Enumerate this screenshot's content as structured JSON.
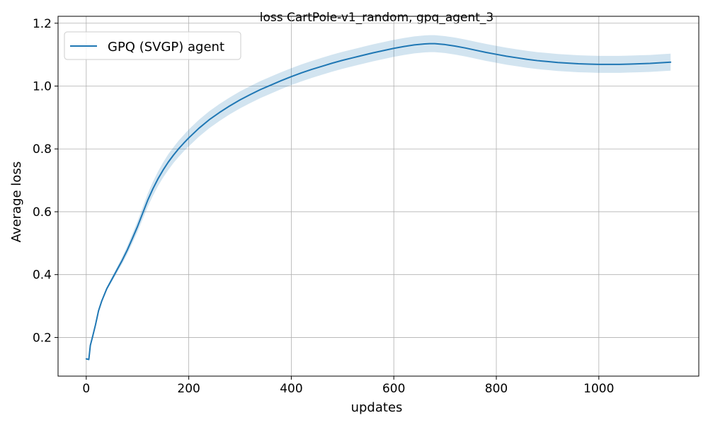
{
  "chart_data": {
    "type": "line",
    "title": "loss CartPole-v1_random, gpq_agent_3",
    "xlabel": "updates",
    "ylabel": "Average loss",
    "xlim": [
      -55,
      1195
    ],
    "ylim": [
      0.077,
      1.222
    ],
    "xticks": [
      0,
      200,
      400,
      600,
      800,
      1000
    ],
    "yticks": [
      0.2,
      0.4,
      0.6,
      0.8,
      1.0,
      1.2
    ],
    "grid": true,
    "legend": "top-left",
    "series": [
      {
        "name": "GPQ (SVGP) agent",
        "color": "#1f77b4",
        "band_color": "#1f77b4",
        "band_opacity": 0.2,
        "x": [
          0,
          5,
          8,
          12,
          18,
          24,
          30,
          35,
          40,
          50,
          60,
          70,
          80,
          90,
          100,
          110,
          120,
          130,
          140,
          150,
          160,
          170,
          180,
          190,
          200,
          220,
          240,
          260,
          280,
          300,
          320,
          340,
          360,
          380,
          400,
          420,
          440,
          460,
          480,
          500,
          520,
          540,
          560,
          580,
          600,
          620,
          640,
          660,
          670,
          680,
          700,
          720,
          740,
          760,
          780,
          800,
          820,
          840,
          860,
          880,
          900,
          920,
          940,
          960,
          980,
          1000,
          1020,
          1040,
          1060,
          1080,
          1100,
          1120,
          1140
        ],
        "y": [
          0.132,
          0.13,
          0.175,
          0.2,
          0.24,
          0.285,
          0.315,
          0.335,
          0.355,
          0.385,
          0.415,
          0.445,
          0.478,
          0.515,
          0.553,
          0.595,
          0.637,
          0.673,
          0.705,
          0.733,
          0.758,
          0.78,
          0.8,
          0.818,
          0.835,
          0.866,
          0.893,
          0.916,
          0.937,
          0.956,
          0.973,
          0.989,
          1.003,
          1.017,
          1.03,
          1.042,
          1.053,
          1.063,
          1.073,
          1.082,
          1.09,
          1.098,
          1.106,
          1.113,
          1.12,
          1.126,
          1.131,
          1.134,
          1.135,
          1.135,
          1.132,
          1.127,
          1.121,
          1.114,
          1.107,
          1.101,
          1.095,
          1.09,
          1.085,
          1.081,
          1.078,
          1.075,
          1.073,
          1.071,
          1.07,
          1.069,
          1.069,
          1.069,
          1.07,
          1.071,
          1.072,
          1.074,
          1.076
        ],
        "y_lower": [
          0.132,
          0.13,
          0.175,
          0.2,
          0.24,
          0.283,
          0.312,
          0.331,
          0.35,
          0.378,
          0.406,
          0.434,
          0.465,
          0.5,
          0.536,
          0.576,
          0.616,
          0.651,
          0.682,
          0.709,
          0.733,
          0.755,
          0.774,
          0.792,
          0.808,
          0.839,
          0.866,
          0.889,
          0.91,
          0.929,
          0.946,
          0.962,
          0.976,
          0.99,
          1.003,
          1.015,
          1.026,
          1.036,
          1.046,
          1.055,
          1.063,
          1.071,
          1.079,
          1.086,
          1.093,
          1.099,
          1.104,
          1.107,
          1.108,
          1.108,
          1.105,
          1.1,
          1.094,
          1.087,
          1.08,
          1.074,
          1.068,
          1.063,
          1.058,
          1.054,
          1.051,
          1.048,
          1.046,
          1.044,
          1.043,
          1.042,
          1.042,
          1.042,
          1.043,
          1.044,
          1.045,
          1.047,
          1.049
        ],
        "y_upper": [
          0.132,
          0.13,
          0.175,
          0.2,
          0.24,
          0.287,
          0.318,
          0.339,
          0.36,
          0.392,
          0.424,
          0.456,
          0.491,
          0.53,
          0.57,
          0.614,
          0.658,
          0.695,
          0.728,
          0.757,
          0.783,
          0.805,
          0.826,
          0.844,
          0.862,
          0.893,
          0.92,
          0.943,
          0.964,
          0.983,
          1.0,
          1.016,
          1.03,
          1.044,
          1.057,
          1.069,
          1.08,
          1.09,
          1.1,
          1.109,
          1.117,
          1.125,
          1.133,
          1.14,
          1.147,
          1.153,
          1.158,
          1.161,
          1.162,
          1.162,
          1.159,
          1.154,
          1.148,
          1.141,
          1.134,
          1.128,
          1.122,
          1.117,
          1.112,
          1.108,
          1.105,
          1.102,
          1.1,
          1.098,
          1.097,
          1.096,
          1.096,
          1.096,
          1.097,
          1.098,
          1.099,
          1.101,
          1.103
        ]
      }
    ]
  }
}
